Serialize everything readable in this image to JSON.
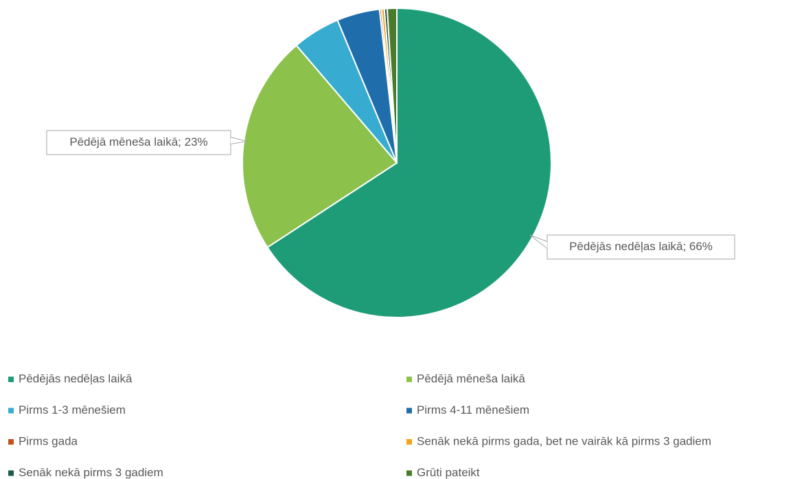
{
  "chart_data": {
    "type": "pie",
    "categories": [
      "Pēdējās nedēļas laikā",
      "Pēdējā mēneša laikā",
      "Pirms 1-3 mēnešiem",
      "Pirms 4-11 mēnešiem",
      "Pirms gada",
      "Senāk nekā pirms gada, bet ne vairāk kā pirms 3 gadiem",
      "Senāk nekā pirms 3 gadiem",
      "Grūti pateikt"
    ],
    "values": [
      66,
      23,
      5,
      4.5,
      0.2,
      0.3,
      0.3,
      1
    ],
    "value_labels": [
      "Pēdējās nedēļas laikā; 66%",
      "Pēdējā mēneša laikā; 23%",
      null,
      null,
      null,
      null,
      null,
      null
    ],
    "colors": [
      "#1e9c78",
      "#8cc14c",
      "#37acd0",
      "#1f6eab",
      "#c5501e",
      "#f5a31a",
      "#1d5b48",
      "#4a7a2a"
    ],
    "legend": "bottom"
  }
}
